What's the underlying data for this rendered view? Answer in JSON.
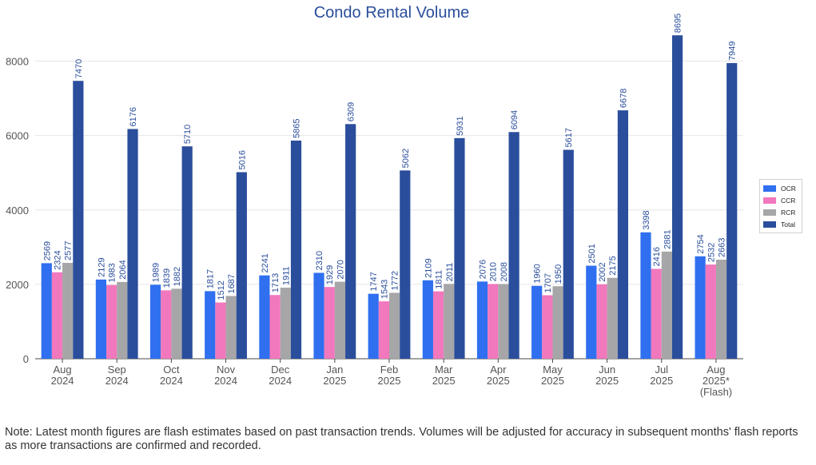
{
  "chart_data": {
    "type": "bar",
    "title": "Condo Rental Volume",
    "xlabel": "",
    "ylabel": "",
    "ylim": [
      0,
      9000
    ],
    "yticks": [
      0,
      2000,
      4000,
      6000,
      8000
    ],
    "grid": true,
    "legend_position": "right",
    "categories": [
      [
        "Aug",
        "2024"
      ],
      [
        "Sep",
        "2024"
      ],
      [
        "Oct",
        "2024"
      ],
      [
        "Nov",
        "2024"
      ],
      [
        "Dec",
        "2024"
      ],
      [
        "Jan",
        "2025"
      ],
      [
        "Feb",
        "2025"
      ],
      [
        "Mar",
        "2025"
      ],
      [
        "Apr",
        "2025"
      ],
      [
        "May",
        "2025"
      ],
      [
        "Jun",
        "2025"
      ],
      [
        "Jul",
        "2025"
      ],
      [
        "Aug",
        "2025*",
        "(Flash)"
      ]
    ],
    "series": [
      {
        "name": "OCR",
        "color": "#2f6ff0",
        "values": [
          2569,
          2129,
          1989,
          1817,
          2241,
          2310,
          1747,
          2109,
          2076,
          1960,
          2501,
          3398,
          2754
        ]
      },
      {
        "name": "CCR",
        "color": "#f178bd",
        "values": [
          2324,
          1983,
          1839,
          1512,
          1713,
          1929,
          1543,
          1811,
          2010,
          1707,
          2002,
          2416,
          2532
        ]
      },
      {
        "name": "RCR",
        "color": "#a6a6a8",
        "values": [
          2577,
          2064,
          1882,
          1687,
          1911,
          2070,
          1772,
          2011,
          2008,
          1950,
          2175,
          2881,
          2663
        ]
      },
      {
        "name": "Total",
        "color": "#2a4e9c",
        "values": [
          7470,
          6176,
          5710,
          5016,
          5865,
          6309,
          5062,
          5931,
          6094,
          5617,
          6678,
          8695,
          7949
        ]
      }
    ]
  },
  "colors": {
    "title": "#2a4e9c",
    "data_label": "#2a4e9c",
    "axis_text": "#555555",
    "grid": "#e6e6e6"
  },
  "note": "Note: Latest month figures are flash estimates based on past transaction trends. Volumes will be adjusted for accuracy in subsequent months' flash reports as more transactions are confirmed and recorded."
}
